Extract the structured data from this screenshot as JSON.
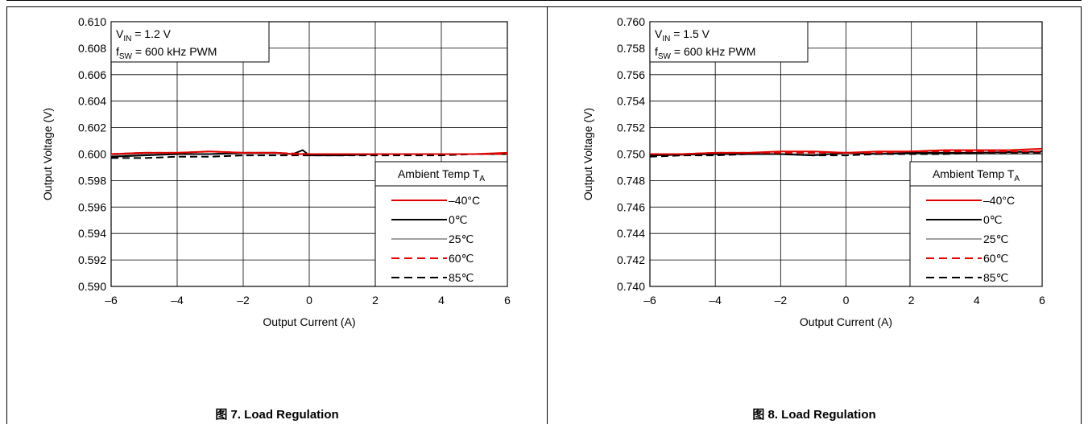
{
  "charts": [
    {
      "caption_prefix": "图",
      "caption": "7. Load Regulation"
    },
    {
      "caption_prefix": "图",
      "caption": "8. Load Regulation"
    }
  ],
  "chart_data": [
    {
      "type": "line",
      "xlabel": "Output Current (A)",
      "ylabel": "Output Voltage (V)",
      "xlim": [
        -6,
        6
      ],
      "ylim": [
        0.59,
        0.61
      ],
      "xticks": [
        "–6",
        "–4",
        "–2",
        "0",
        "2",
        "4",
        "6"
      ],
      "yticks": [
        "0.590",
        "0.592",
        "0.594",
        "0.596",
        "0.598",
        "0.600",
        "0.602",
        "0.604",
        "0.606",
        "0.608",
        "0.610"
      ],
      "grid": true,
      "annotation": {
        "line1_prefix": "V",
        "line1_sub": "IN",
        "line1_suffix": " = 1.2 V",
        "line2_prefix": "f",
        "line2_sub": "SW",
        "line2_suffix": " = 600 kHz PWM"
      },
      "legend": {
        "title": "Ambient Temp T",
        "title_sub": "A",
        "placement": "lower-right"
      },
      "series": [
        {
          "name": "–40°C",
          "color": "#e00000",
          "dash": false,
          "x": [
            -6,
            -5,
            -4,
            -3,
            -2,
            -1,
            -0.5,
            0,
            1,
            2,
            3,
            4,
            5,
            6
          ],
          "y": [
            0.6,
            0.6001,
            0.6001,
            0.6002,
            0.6001,
            0.6001,
            0.6,
            0.6,
            0.6,
            0.6,
            0.6,
            0.6,
            0.6,
            0.6001
          ]
        },
        {
          "name": "0℃",
          "color": "#000000",
          "dash": false,
          "x": [
            -6,
            -5,
            -4,
            -3,
            -2,
            -1.5,
            -1,
            -0.5,
            -0.2,
            0,
            1,
            2,
            3,
            4,
            5,
            6
          ],
          "y": [
            0.5998,
            0.5999,
            0.6,
            0.6,
            0.6001,
            0.6001,
            0.6001,
            0.6,
            0.6003,
            0.5999,
            0.5999,
            0.6,
            0.6,
            0.6,
            0.6,
            0.6
          ]
        },
        {
          "name": "25℃",
          "color": "#a0a0a0",
          "dash": false,
          "x": [
            -6,
            -4,
            -2,
            0,
            2,
            4,
            6
          ],
          "y": [
            0.5999,
            0.6,
            0.6,
            0.6,
            0.6,
            0.6,
            0.6
          ]
        },
        {
          "name": "60℃",
          "color": "#e00000",
          "dash": true,
          "x": [
            -6,
            -5,
            -4,
            -3,
            -2,
            -1,
            0,
            1,
            2,
            3,
            4,
            5,
            6
          ],
          "y": [
            0.6,
            0.6001,
            0.6001,
            0.6002,
            0.6001,
            0.6001,
            0.6,
            0.6,
            0.6,
            0.6,
            0.6,
            0.6,
            0.6
          ]
        },
        {
          "name": "85℃",
          "color": "#000000",
          "dash": true,
          "x": [
            -6,
            -5,
            -4,
            -3,
            -2,
            -1,
            0,
            1,
            2,
            3,
            4,
            5,
            6
          ],
          "y": [
            0.5997,
            0.5997,
            0.5998,
            0.5998,
            0.5999,
            0.5999,
            0.5999,
            0.5999,
            0.5999,
            0.5999,
            0.5999,
            0.6,
            0.6
          ]
        }
      ]
    },
    {
      "type": "line",
      "xlabel": "Output Current (A)",
      "ylabel": "Output Voltage (V)",
      "xlim": [
        -6,
        6
      ],
      "ylim": [
        0.74,
        0.76
      ],
      "xticks": [
        "–6",
        "–4",
        "–2",
        "0",
        "2",
        "4",
        "6"
      ],
      "yticks": [
        "0.740",
        "0.742",
        "0.744",
        "0.746",
        "0.748",
        "0.750",
        "0.752",
        "0.754",
        "0.756",
        "0.758",
        "0.760"
      ],
      "grid": true,
      "annotation": {
        "line1_prefix": "V",
        "line1_sub": "IN",
        "line1_suffix": " = 1.5 V",
        "line2_prefix": "f",
        "line2_sub": "SW",
        "line2_suffix": " = 600 kHz PWM"
      },
      "legend": {
        "title": "Ambient Temp T",
        "title_sub": "A",
        "placement": "lower-right"
      },
      "series": [
        {
          "name": "–40°C",
          "color": "#e00000",
          "dash": false,
          "x": [
            -6,
            -5,
            -4,
            -3,
            -2,
            -1,
            0,
            1,
            2,
            3,
            4,
            5,
            6
          ],
          "y": [
            0.75,
            0.75,
            0.7501,
            0.7501,
            0.7502,
            0.7502,
            0.7501,
            0.7502,
            0.7502,
            0.7503,
            0.7503,
            0.7503,
            0.7504
          ]
        },
        {
          "name": "0℃",
          "color": "#000000",
          "dash": false,
          "x": [
            -6,
            -4,
            -2,
            -1,
            0,
            1,
            2,
            4,
            6
          ],
          "y": [
            0.7499,
            0.75,
            0.75,
            0.7499,
            0.7501,
            0.75,
            0.7501,
            0.7501,
            0.7502
          ]
        },
        {
          "name": "25℃",
          "color": "#a0a0a0",
          "dash": false,
          "x": [
            -6,
            -4,
            -2,
            0,
            2,
            4,
            6
          ],
          "y": [
            0.75,
            0.75,
            0.75,
            0.75,
            0.7501,
            0.7501,
            0.7501
          ]
        },
        {
          "name": "60℃",
          "color": "#e00000",
          "dash": true,
          "x": [
            -6,
            -5,
            -4,
            -3,
            -2,
            -1,
            0,
            1,
            2,
            3,
            4,
            5,
            6
          ],
          "y": [
            0.75,
            0.75,
            0.7501,
            0.7501,
            0.7501,
            0.7501,
            0.7501,
            0.7501,
            0.7502,
            0.7502,
            0.7502,
            0.7502,
            0.7502
          ]
        },
        {
          "name": "85℃",
          "color": "#000000",
          "dash": true,
          "x": [
            -6,
            -5,
            -4,
            -3,
            -2,
            -1,
            0,
            1,
            2,
            3,
            4,
            5,
            6
          ],
          "y": [
            0.7498,
            0.7499,
            0.7499,
            0.75,
            0.75,
            0.7499,
            0.7499,
            0.75,
            0.75,
            0.75,
            0.7501,
            0.7501,
            0.7501
          ]
        }
      ]
    }
  ]
}
